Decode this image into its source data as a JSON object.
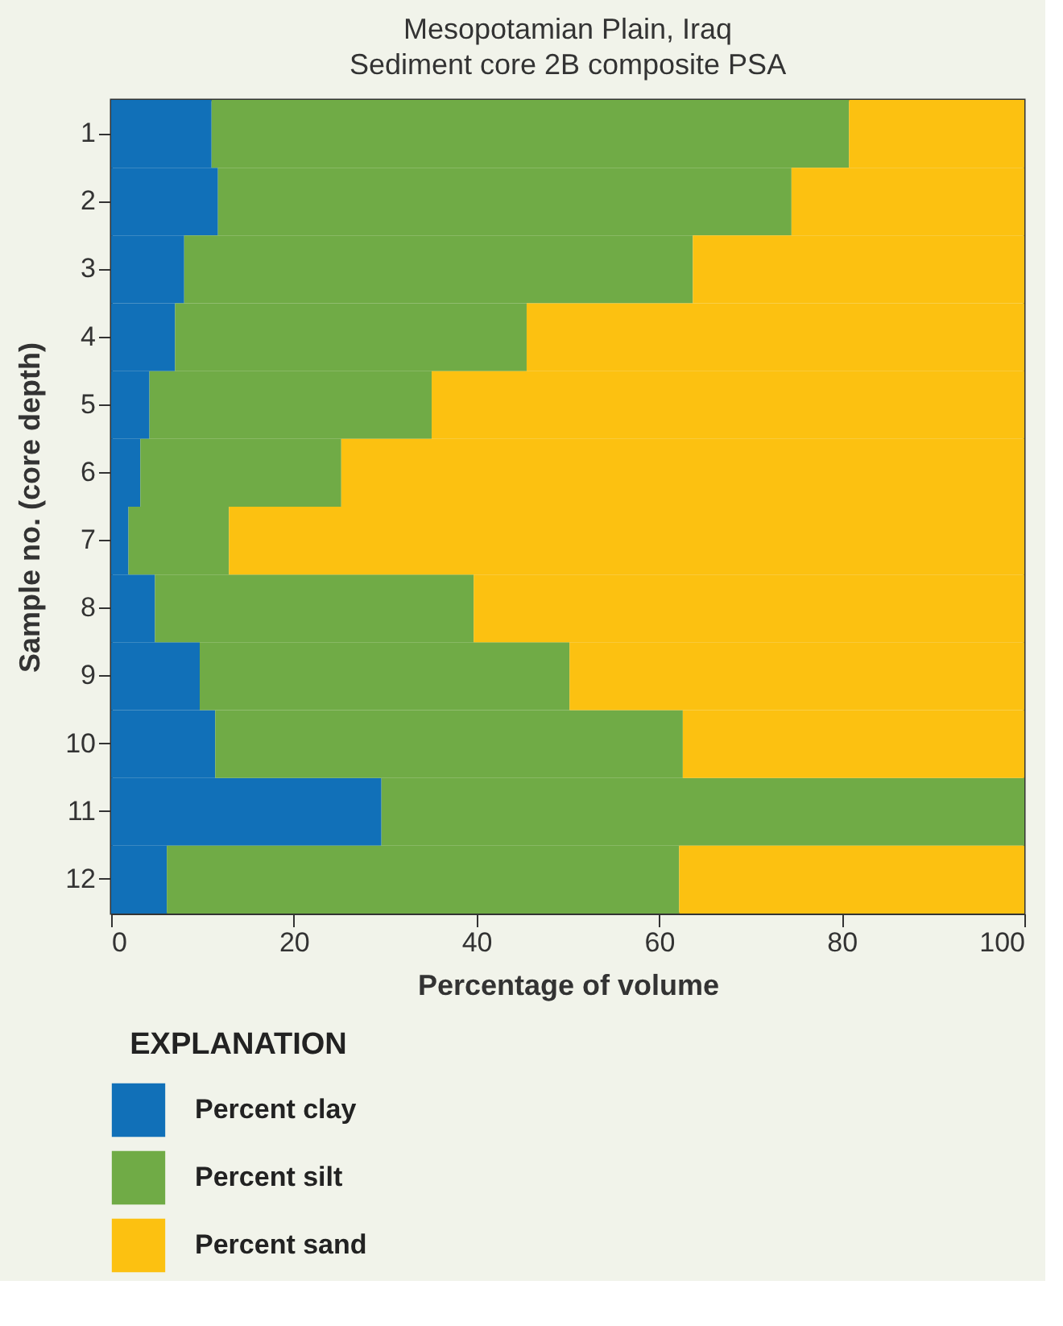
{
  "chart_data": {
    "type": "bar",
    "orientation": "horizontal",
    "stacked": true,
    "title": "Mesopotamian Plain, Iraq",
    "subtitle": "Sediment core 2B composite PSA",
    "xlabel": "Percentage of volume",
    "ylabel": "Sample no. (core depth)",
    "legend_title": "EXPLANATION",
    "categories": [
      "1",
      "2",
      "3",
      "4",
      "5",
      "6",
      "7",
      "8",
      "9",
      "10",
      "11",
      "12"
    ],
    "series": [
      {
        "name": "Percent clay",
        "color": "#1170b8",
        "values": [
          11.0,
          11.7,
          8.0,
          7.0,
          4.2,
          3.2,
          1.9,
          4.8,
          9.7,
          11.4,
          29.6,
          6.1
        ]
      },
      {
        "name": "Percent silt",
        "color": "#70ab46",
        "values": [
          69.8,
          62.8,
          55.7,
          38.5,
          30.9,
          22.0,
          11.0,
          34.9,
          40.5,
          51.2,
          70.4,
          56.1
        ]
      },
      {
        "name": "Percent sand",
        "color": "#fcc111",
        "values": [
          19.2,
          25.5,
          36.3,
          54.5,
          64.9,
          74.8,
          87.1,
          60.3,
          49.8,
          37.4,
          0,
          37.8
        ]
      }
    ],
    "xlim": [
      0,
      100
    ],
    "xticks": [
      0,
      20,
      40,
      60,
      80,
      100
    ],
    "grid": false,
    "legend": "bottom"
  }
}
